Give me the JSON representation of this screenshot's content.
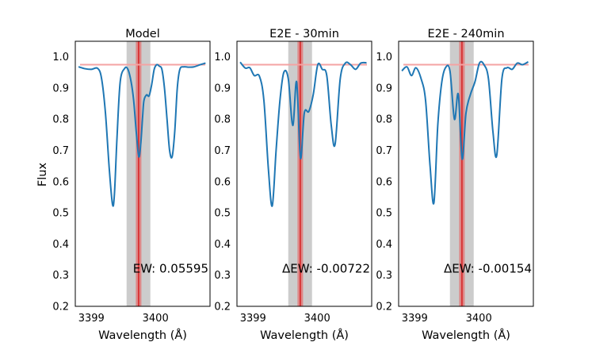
{
  "figure": {
    "ylabel": "Flux"
  },
  "colors": {
    "line": "#1f77b4",
    "continuum": "#f4a3a3",
    "window": "#c9c9c9",
    "center_line": "#d62728",
    "center_band": "#e07a7a"
  },
  "chart_data": [
    {
      "type": "line",
      "title": "Model",
      "xlabel": "Wavelength (Å)",
      "ylabel": "Flux",
      "xlim": [
        3398.75,
        3400.85
      ],
      "ylim": [
        0.2,
        1.05
      ],
      "xticks": [
        3399,
        3400
      ],
      "yticks": [
        0.2,
        0.3,
        0.4,
        0.5,
        0.6,
        0.7,
        0.8,
        0.9,
        1.0
      ],
      "ytick_labels": [
        "0.2",
        "0.3",
        "0.4",
        "0.5",
        "0.6",
        "0.7",
        "0.8",
        "0.9",
        "1.0"
      ],
      "continuum_level": 0.975,
      "integration_window": [
        3399.55,
        3399.92
      ],
      "line_center": 3399.737,
      "annotation": "EW: 0.05595",
      "x": [
        3398.8,
        3398.9,
        3399.0,
        3399.1,
        3399.16,
        3399.22,
        3399.28,
        3399.33,
        3399.36,
        3399.4,
        3399.45,
        3399.52,
        3399.57,
        3399.62,
        3399.66,
        3399.7,
        3399.74,
        3399.77,
        3399.8,
        3399.82,
        3399.86,
        3399.9,
        3399.94,
        3399.98,
        3400.02,
        3400.06,
        3400.1,
        3400.14,
        3400.18,
        3400.22,
        3400.26,
        3400.3,
        3400.34,
        3400.38,
        3400.44,
        3400.52,
        3400.6,
        3400.7,
        3400.78
      ],
      "y": [
        0.968,
        0.962,
        0.96,
        0.963,
        0.93,
        0.82,
        0.64,
        0.527,
        0.56,
        0.74,
        0.92,
        0.963,
        0.96,
        0.92,
        0.86,
        0.76,
        0.68,
        0.72,
        0.81,
        0.86,
        0.878,
        0.875,
        0.91,
        0.96,
        0.975,
        0.97,
        0.96,
        0.9,
        0.8,
        0.7,
        0.68,
        0.76,
        0.9,
        0.96,
        0.968,
        0.967,
        0.968,
        0.975,
        0.98
      ]
    },
    {
      "type": "line",
      "title": "E2E - 30min",
      "xlabel": "Wavelength (Å)",
      "ylabel": "",
      "xlim": [
        3398.75,
        3400.85
      ],
      "ylim": [
        0.2,
        1.05
      ],
      "xticks": [
        3399,
        3400
      ],
      "yticks": [
        0.2,
        0.3,
        0.4,
        0.5,
        0.6,
        0.7,
        0.8,
        0.9,
        1.0
      ],
      "ytick_labels": [
        "0.2",
        "0.3",
        "0.4",
        "0.5",
        "0.6",
        "0.7",
        "0.8",
        "0.9",
        "1.0"
      ],
      "continuum_level": 0.975,
      "integration_window": [
        3399.55,
        3399.92
      ],
      "line_center": 3399.737,
      "annotation": "ΔEW: -0.00722",
      "x": [
        3398.8,
        3398.88,
        3398.95,
        3399.02,
        3399.1,
        3399.17,
        3399.24,
        3399.3,
        3399.36,
        3399.42,
        3399.48,
        3399.55,
        3399.62,
        3399.68,
        3399.74,
        3399.8,
        3399.87,
        3399.94,
        3400.01,
        3400.08,
        3400.15,
        3400.22,
        3400.28,
        3400.36,
        3400.44,
        3400.52,
        3400.6,
        3400.68,
        3400.77
      ],
      "y": [
        0.983,
        0.964,
        0.965,
        0.94,
        0.938,
        0.86,
        0.64,
        0.522,
        0.7,
        0.86,
        0.95,
        0.93,
        0.78,
        0.92,
        0.675,
        0.82,
        0.825,
        0.88,
        0.975,
        0.96,
        0.94,
        0.78,
        0.72,
        0.93,
        0.98,
        0.975,
        0.96,
        0.98,
        0.981
      ]
    },
    {
      "type": "line",
      "title": "E2E - 240min",
      "xlabel": "Wavelength (Å)",
      "ylabel": "",
      "xlim": [
        3398.75,
        3400.85
      ],
      "ylim": [
        0.2,
        1.05
      ],
      "xticks": [
        3399,
        3400
      ],
      "yticks": [
        0.2,
        0.3,
        0.4,
        0.5,
        0.6,
        0.7,
        0.8,
        0.9,
        1.0
      ],
      "ytick_labels": [
        "0.2",
        "0.3",
        "0.4",
        "0.5",
        "0.6",
        "0.7",
        "0.8",
        "0.9",
        "1.0"
      ],
      "continuum_level": 0.975,
      "integration_window": [
        3399.55,
        3399.92
      ],
      "line_center": 3399.737,
      "annotation": "ΔEW: -0.00154",
      "x": [
        3398.8,
        3398.88,
        3398.95,
        3399.02,
        3399.1,
        3399.17,
        3399.24,
        3399.3,
        3399.36,
        3399.42,
        3399.48,
        3399.55,
        3399.62,
        3399.68,
        3399.74,
        3399.8,
        3399.87,
        3399.94,
        3400.01,
        3400.08,
        3400.15,
        3400.22,
        3400.28,
        3400.36,
        3400.44,
        3400.52,
        3400.6,
        3400.68,
        3400.77
      ],
      "y": [
        0.955,
        0.968,
        0.94,
        0.965,
        0.93,
        0.86,
        0.65,
        0.532,
        0.78,
        0.915,
        0.965,
        0.955,
        0.8,
        0.88,
        0.672,
        0.82,
        0.88,
        0.92,
        0.98,
        0.975,
        0.93,
        0.76,
        0.685,
        0.93,
        0.965,
        0.96,
        0.98,
        0.975,
        0.984
      ]
    }
  ]
}
